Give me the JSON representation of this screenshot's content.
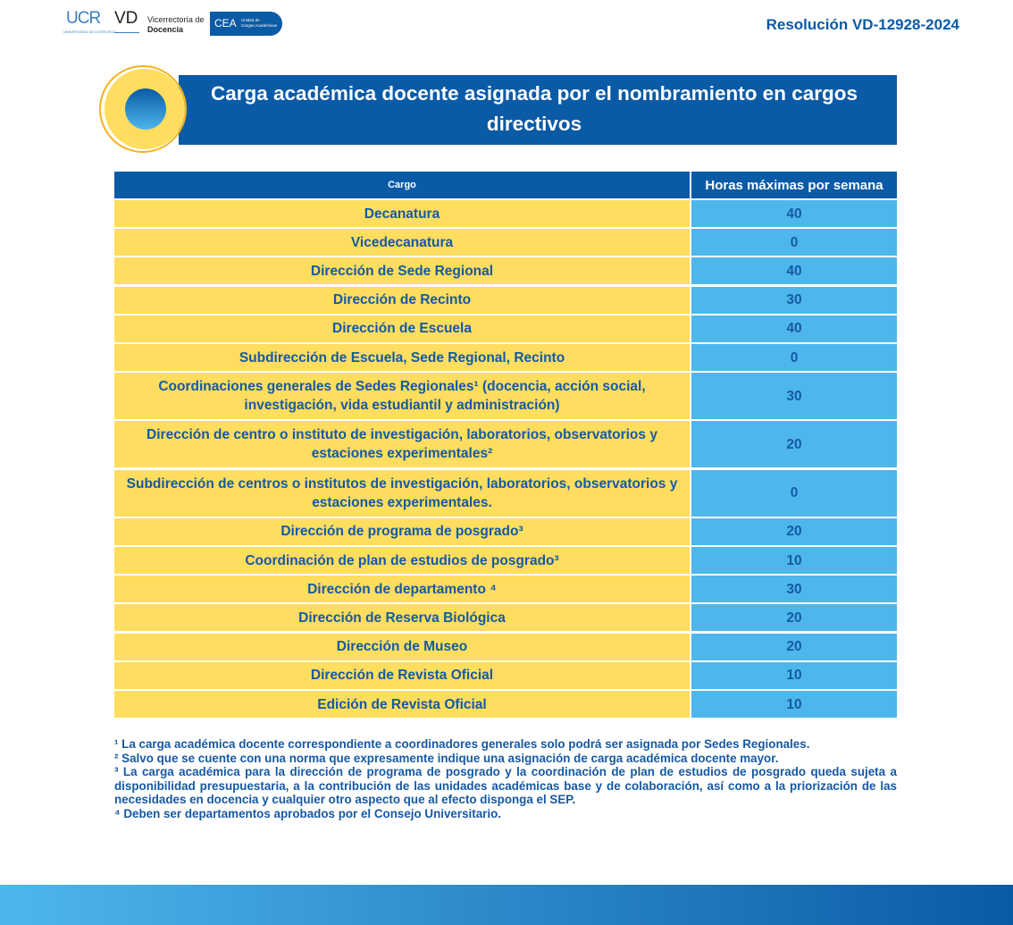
{
  "header": {
    "ucr": "UCR",
    "ucr_sub": "UNIVERSIDAD DE COSTA RICA",
    "vd": "VD",
    "vd_line1": "Vicerrectoría de",
    "vd_line2": "Docencia",
    "cea": "CEA",
    "cea_line1": "Unidad de",
    "cea_line2": "Cargas Académicas",
    "resolution": "Resolución VD-12928-2024"
  },
  "title": "Carga académica docente asignada por el nombramiento en cargos directivos",
  "table": {
    "columns": [
      "Cargo",
      "Horas máximas por semana"
    ],
    "rows": [
      [
        "Decanatura",
        "40"
      ],
      [
        "Vicedecanatura",
        "0"
      ],
      [
        "Dirección de Sede Regional",
        "40"
      ],
      [
        "Dirección de Recinto",
        "30"
      ],
      [
        "Dirección de Escuela",
        "40"
      ],
      [
        "Subdirección de Escuela, Sede Regional, Recinto",
        "0"
      ],
      [
        "Coordinaciones generales de Sedes Regionales¹ (docencia, acción social, investigación, vida estudiantil y administración)",
        "30"
      ],
      [
        "Dirección de centro o instituto de investigación, laboratorios, observatorios y estaciones experimentales²",
        "20"
      ],
      [
        "Subdirección de centros o institutos de investigación, laboratorios, observatorios y estaciones experimentales.",
        "0"
      ],
      [
        "Dirección de programa de posgrado³",
        "20"
      ],
      [
        "Coordinación de plan de estudios de posgrado³",
        "10"
      ],
      [
        "Dirección de departamento ⁴",
        "30"
      ],
      [
        "Dirección de Reserva Biológica",
        "20"
      ],
      [
        "Dirección de Museo",
        "20"
      ],
      [
        "Dirección de Revista Oficial",
        "10"
      ],
      [
        "Edición de Revista Oficial",
        "10"
      ]
    ]
  },
  "footnotes": [
    "¹ La carga académica docente correspondiente a coordinadores generales solo podrá ser asignada por Sedes Regionales.",
    "² Salvo que se cuente con una norma que expresamente indique una asignación de carga académica docente mayor.",
    "³ La carga académica para la dirección de programa de posgrado y la coordinación de plan de estudios de posgrado queda sujeta a disponibilidad presupuestaria, a la contribución de las unidades académicas base y de colaboración, así como a la priorización de las necesidades en docencia y cualquier otro aspecto que al efecto disponga el SEP.",
    "⁴ Deben ser departamentos aprobados por el Consejo Universitario."
  ]
}
